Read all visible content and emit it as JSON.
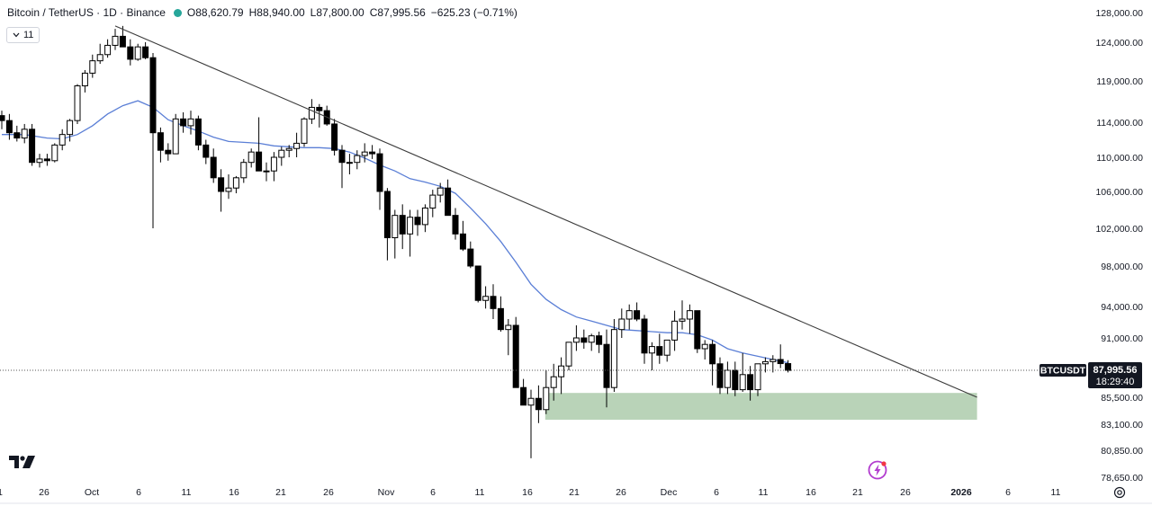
{
  "header": {
    "symbol": "Bitcoin / TetherUS",
    "interval": "1D",
    "exchange": "Binance",
    "open": "O88,620.79",
    "high": "H88,940.00",
    "low": "L87,800.00",
    "close": "C87,995.56",
    "change": "−625.23 (−0.71%)",
    "indicators_toggle": "11"
  },
  "price_label": {
    "ticker": "BTCUSDT",
    "price": "87,995.56",
    "countdown": "18:29:40"
  },
  "colors": {
    "down": "#000000",
    "up_fill": "#ffffff",
    "ma": "#5b7fd6",
    "trendline": "#3c3c3c",
    "zone": "#b9d3b8",
    "status_dot": "#26a69a"
  },
  "icons": [
    "tradingview-logo-icon",
    "lightning-icon",
    "settings-icon"
  ],
  "chart_data": {
    "type": "candlestick",
    "interval": "1D",
    "y_ticks": [
      "128,000.00",
      "124,000.00",
      "119,000.00",
      "114,000.00",
      "110,000.00",
      "106,000.00",
      "102,000.00",
      "98,000.00",
      "94,000.00",
      "91,000.00",
      "85,500.00",
      "83,100.00",
      "80,850.00",
      "78,650.00"
    ],
    "x_ticks": [
      "1",
      "26",
      "Oct",
      "6",
      "11",
      "16",
      "21",
      "26",
      "Nov",
      "6",
      "11",
      "16",
      "21",
      "26",
      "Dec",
      "6",
      "11",
      "16",
      "21",
      "26",
      "2026",
      "6",
      "11"
    ],
    "last_price": 87995.56,
    "candles": [
      [
        114800,
        115400,
        113200,
        114200
      ],
      [
        114200,
        115000,
        112000,
        112800
      ],
      [
        112800,
        113600,
        111800,
        112200
      ],
      [
        112200,
        113800,
        111600,
        113200
      ],
      [
        113200,
        113800,
        109000,
        109400
      ],
      [
        109400,
        110400,
        108800,
        109800
      ],
      [
        109800,
        110400,
        109000,
        109600
      ],
      [
        109600,
        111600,
        109400,
        111400
      ],
      [
        111400,
        113200,
        110800,
        112600
      ],
      [
        112600,
        114400,
        111800,
        114200
      ],
      [
        114200,
        118600,
        113800,
        118400
      ],
      [
        118400,
        120400,
        117600,
        120000
      ],
      [
        120000,
        122400,
        119400,
        121600
      ],
      [
        121600,
        123800,
        121200,
        122400
      ],
      [
        122400,
        124400,
        122000,
        123600
      ],
      [
        123600,
        125800,
        123000,
        124800
      ],
      [
        124800,
        126200,
        123400,
        123400
      ],
      [
        123400,
        124400,
        121000,
        121800
      ],
      [
        121800,
        123800,
        121600,
        123400
      ],
      [
        123400,
        124000,
        121800,
        122000
      ],
      [
        122000,
        122600,
        102000,
        112800
      ],
      [
        112800,
        113400,
        109400,
        110800
      ],
      [
        110800,
        111600,
        109600,
        110400
      ],
      [
        110400,
        115000,
        110400,
        114400
      ],
      [
        114400,
        115200,
        112800,
        113600
      ],
      [
        113600,
        115400,
        112600,
        114400
      ],
      [
        114400,
        114800,
        110800,
        111400
      ],
      [
        111400,
        112000,
        109200,
        110000
      ],
      [
        110000,
        111000,
        107000,
        107600
      ],
      [
        107600,
        108600,
        103800,
        106000
      ],
      [
        106000,
        108000,
        105200,
        106400
      ],
      [
        106400,
        107800,
        105800,
        107600
      ],
      [
        107600,
        109800,
        107000,
        109400
      ],
      [
        109400,
        111000,
        108800,
        110600
      ],
      [
        110600,
        114600,
        108400,
        108400
      ],
      [
        108400,
        109400,
        107200,
        108400
      ],
      [
        108400,
        110600,
        107200,
        110000
      ],
      [
        110000,
        111200,
        109000,
        110800
      ],
      [
        110800,
        111400,
        110000,
        111000
      ],
      [
        111000,
        112800,
        110000,
        111600
      ],
      [
        111600,
        114600,
        111200,
        114400
      ],
      [
        114400,
        116800,
        113800,
        115800
      ],
      [
        115800,
        116200,
        113400,
        115400
      ],
      [
        115400,
        116000,
        113600,
        113800
      ],
      [
        113800,
        114400,
        110200,
        110800
      ],
      [
        110800,
        111400,
        106400,
        109400
      ],
      [
        109400,
        110400,
        108000,
        109400
      ],
      [
        109400,
        110800,
        108600,
        110200
      ],
      [
        110200,
        111600,
        109400,
        110600
      ],
      [
        110600,
        111400,
        109800,
        110400
      ],
      [
        110400,
        111000,
        104000,
        106000
      ],
      [
        106000,
        106400,
        98600,
        101000
      ],
      [
        101000,
        104000,
        98800,
        103400
      ],
      [
        103400,
        104600,
        99800,
        101400
      ],
      [
        101400,
        104000,
        99000,
        103200
      ],
      [
        103200,
        104000,
        101200,
        102400
      ],
      [
        102400,
        104600,
        101600,
        104200
      ],
      [
        104200,
        106200,
        103200,
        105600
      ],
      [
        105600,
        107000,
        104800,
        106400
      ],
      [
        106400,
        107400,
        103400,
        103400
      ],
      [
        103400,
        104200,
        100800,
        101400
      ],
      [
        101400,
        102800,
        99600,
        99800
      ],
      [
        99800,
        100600,
        97800,
        98000
      ],
      [
        98000,
        98000,
        94400,
        94600
      ],
      [
        94600,
        96000,
        93800,
        95000
      ],
      [
        95000,
        96200,
        92800,
        93800
      ],
      [
        93800,
        95000,
        91600,
        91800
      ],
      [
        91800,
        92800,
        89400,
        92200
      ],
      [
        92200,
        93000,
        86400,
        86400
      ],
      [
        86400,
        87200,
        85200,
        84800
      ],
      [
        84800,
        86200,
        80200,
        85400
      ],
      [
        85400,
        86600,
        83200,
        84400
      ],
      [
        84400,
        88000,
        84000,
        86400
      ],
      [
        86400,
        88600,
        85200,
        87400
      ],
      [
        87400,
        89200,
        85800,
        88400
      ],
      [
        88400,
        90600,
        88000,
        90600
      ],
      [
        90600,
        92200,
        89800,
        91000
      ],
      [
        91000,
        91800,
        90000,
        90600
      ],
      [
        90600,
        91400,
        89800,
        91200
      ],
      [
        91200,
        91600,
        89600,
        90400
      ],
      [
        90400,
        91800,
        84600,
        86400
      ],
      [
        86400,
        92800,
        86000,
        91800
      ],
      [
        91800,
        93800,
        91000,
        92800
      ],
      [
        92800,
        94200,
        91800,
        93600
      ],
      [
        93600,
        94400,
        92600,
        92800
      ],
      [
        92800,
        93200,
        88600,
        89600
      ],
      [
        89600,
        90600,
        88000,
        90200
      ],
      [
        90200,
        91400,
        88600,
        89400
      ],
      [
        89400,
        90800,
        88800,
        90800
      ],
      [
        90800,
        93600,
        89800,
        92600
      ],
      [
        92600,
        94600,
        91800,
        92800
      ],
      [
        92800,
        94200,
        91400,
        93600
      ],
      [
        93600,
        93600,
        89600,
        90000
      ],
      [
        90000,
        90800,
        89000,
        90400
      ],
      [
        90400,
        90800,
        86600,
        88600
      ],
      [
        88600,
        89200,
        85800,
        86400
      ],
      [
        86400,
        88800,
        85800,
        88000
      ],
      [
        88000,
        88800,
        85600,
        86200
      ],
      [
        86200,
        89600,
        86000,
        87600
      ],
      [
        87600,
        88400,
        85200,
        86200
      ],
      [
        86200,
        88600,
        85600,
        88600
      ],
      [
        88600,
        89200,
        87800,
        88800
      ],
      [
        88800,
        89400,
        87800,
        89000
      ],
      [
        89000,
        90400,
        88200,
        88620.79
      ],
      [
        88620.79,
        88940,
        87800,
        87995.56
      ]
    ],
    "moving_average": [
      [
        0,
        112600
      ],
      [
        3,
        112600
      ],
      [
        6,
        112200
      ],
      [
        8,
        112100
      ],
      [
        10,
        112600
      ],
      [
        12,
        113600
      ],
      [
        14,
        115000
      ],
      [
        16,
        116000
      ],
      [
        18,
        116600
      ],
      [
        20,
        115800
      ],
      [
        22,
        114300
      ],
      [
        24,
        113600
      ],
      [
        26,
        113000
      ],
      [
        28,
        112300
      ],
      [
        30,
        111800
      ],
      [
        32,
        111700
      ],
      [
        34,
        111600
      ],
      [
        36,
        111300
      ],
      [
        38,
        111200
      ],
      [
        40,
        111100
      ],
      [
        42,
        111100
      ],
      [
        44,
        111000
      ],
      [
        46,
        110600
      ],
      [
        48,
        109900
      ],
      [
        50,
        109100
      ],
      [
        52,
        108400
      ],
      [
        54,
        107500
      ],
      [
        56,
        107100
      ],
      [
        58,
        106600
      ],
      [
        60,
        105800
      ],
      [
        62,
        104200
      ],
      [
        64,
        102500
      ],
      [
        66,
        100600
      ],
      [
        68,
        98400
      ],
      [
        70,
        96200
      ],
      [
        72,
        94700
      ],
      [
        74,
        93700
      ],
      [
        76,
        93000
      ],
      [
        78,
        92600
      ],
      [
        80,
        92200
      ],
      [
        82,
        91800
      ],
      [
        84,
        91700
      ],
      [
        86,
        91600
      ],
      [
        88,
        91500
      ],
      [
        90,
        91500
      ],
      [
        92,
        91300
      ],
      [
        94,
        90800
      ],
      [
        96,
        90000
      ],
      [
        98,
        89600
      ],
      [
        100,
        89300
      ],
      [
        102,
        89000
      ],
      [
        104,
        88700
      ]
    ],
    "trendline": [
      [
        15,
        126200
      ],
      [
        129,
        85500
      ]
    ],
    "support_zone": {
      "from": 72,
      "to": 129,
      "low": 83500,
      "high": 85900
    }
  }
}
